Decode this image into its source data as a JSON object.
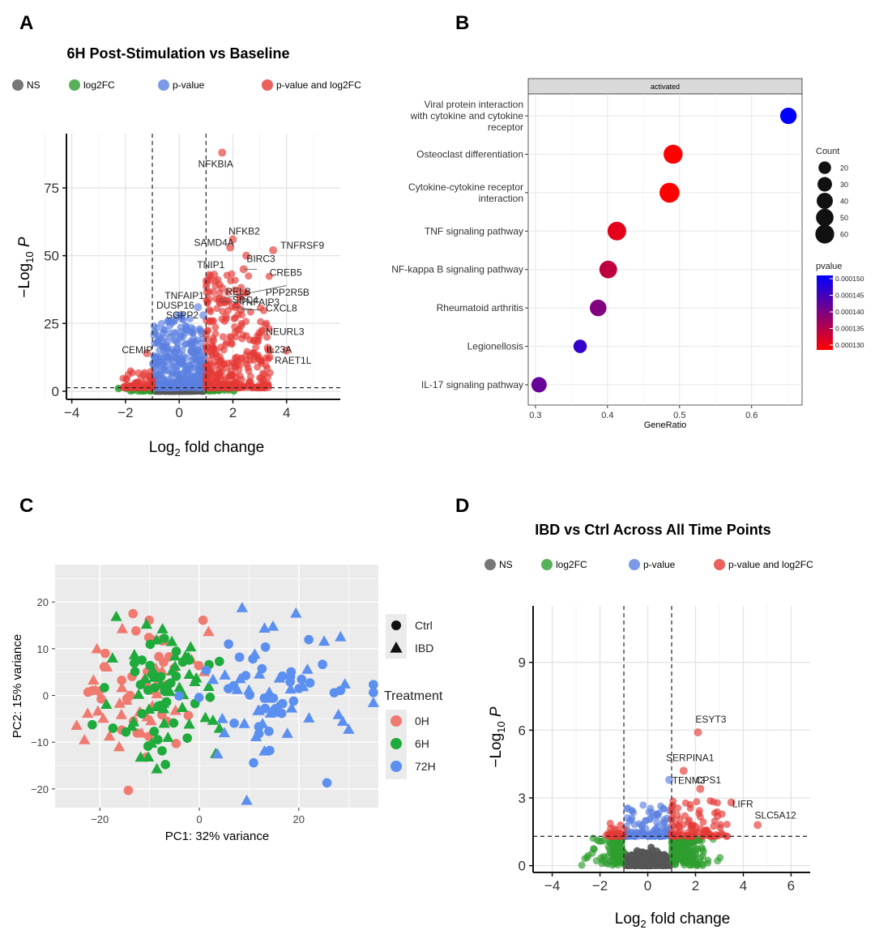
{
  "panel_labels": [
    "A",
    "B",
    "C",
    "D"
  ],
  "colors": {
    "NS": "#555555",
    "log2FC": "#2e9e2e",
    "p-value": "#5a7fe0",
    "p-value and log2FC": "#e53935",
    "panel_bg": "#ebebeb",
    "strip_bg": "#d9d9d9",
    "pvalue_low": "#ff0000",
    "pvalue_high": "#0000ff",
    "pca_0H": "#f07a70",
    "pca_6H": "#1faa3c",
    "pca_72H": "#5b8ff0"
  },
  "chart_data": [
    {
      "panel": "A",
      "type": "scatter",
      "subtype": "volcano",
      "title": "6H Post-Stimulation vs Baseline",
      "xlabel": "Log2 fold change",
      "ylabel": "-Log10 P",
      "xlim": [
        -4.2,
        6
      ],
      "ylim": [
        -3,
        95
      ],
      "xticks": [
        -4,
        -2,
        0,
        2,
        4
      ],
      "yticks": [
        0,
        25,
        50,
        75
      ],
      "fc_cutoff": 1,
      "p_cutoff_y": 1.3,
      "legend": [
        "NS",
        "log2FC",
        "p-value",
        "p-value and log2FC"
      ],
      "labeled_genes": [
        {
          "name": "NFKBIA",
          "x": 1.6,
          "y": 88,
          "cat": "p-value and log2FC"
        },
        {
          "name": "NFKB2",
          "x": 2.0,
          "y": 56,
          "cat": "p-value and log2FC"
        },
        {
          "name": "SAMD4A",
          "x": 1.9,
          "y": 53,
          "cat": "p-value and log2FC"
        },
        {
          "name": "TNFRSF9",
          "x": 3.5,
          "y": 52,
          "cat": "p-value and log2FC"
        },
        {
          "name": "BIRC3",
          "x": 2.5,
          "y": 50,
          "cat": "p-value and log2FC"
        },
        {
          "name": "TNIP1",
          "x": 1.3,
          "y": 43,
          "cat": "p-value and log2FC"
        },
        {
          "name": "CREB5",
          "x": 2.4,
          "y": 45,
          "cat": "p-value and log2FC"
        },
        {
          "name": "RELB",
          "x": 1.6,
          "y": 38,
          "cat": "p-value and log2FC"
        },
        {
          "name": "PPP2R5B",
          "x": 1.5,
          "y": 34,
          "cat": "p-value and log2FC"
        },
        {
          "name": "TNFAIP1",
          "x": 1.1,
          "y": 34,
          "cat": "p-value and log2FC"
        },
        {
          "name": "SDC4",
          "x": 1.5,
          "y": 33,
          "cat": "p-value and log2FC"
        },
        {
          "name": "DUSP16",
          "x": 0.7,
          "y": 31,
          "cat": "p-value"
        },
        {
          "name": "TNFAIP3",
          "x": 2.1,
          "y": 31,
          "cat": "p-value and log2FC"
        },
        {
          "name": "CXCL8",
          "x": 2.3,
          "y": 30,
          "cat": "p-value and log2FC"
        },
        {
          "name": "SGPP2",
          "x": 0.9,
          "y": 28,
          "cat": "p-value"
        },
        {
          "name": "NEURL3",
          "x": 3.1,
          "y": 22,
          "cat": "p-value and log2FC"
        },
        {
          "name": "IL23A",
          "x": 3.3,
          "y": 16,
          "cat": "p-value and log2FC"
        },
        {
          "name": "RAET1L",
          "x": 4.0,
          "y": 15,
          "cat": "p-value and log2FC"
        },
        {
          "name": "CEMIP",
          "x": -1.2,
          "y": 14,
          "cat": "p-value and log2FC"
        }
      ]
    },
    {
      "panel": "B",
      "type": "scatter",
      "subtype": "dotplot",
      "facet": "activated",
      "xlabel": "GeneRatio",
      "xlim": [
        0.29,
        0.67
      ],
      "xticks": [
        0.3,
        0.4,
        0.5,
        0.6
      ],
      "size_legend_title": "Count",
      "size_legend": [
        20,
        30,
        40,
        50,
        60
      ],
      "color_legend_title": "pvalue",
      "color_legend": [
        "0.000150",
        "0.000145",
        "0.000140",
        "0.000135",
        "0.000130"
      ],
      "terms": [
        {
          "label": [
            "Viral protein interaction",
            "with cytokine and cytokine",
            "receptor"
          ],
          "ratio": 0.651,
          "count": 37,
          "pvalue": 0.00015
        },
        {
          "label": [
            "Osteoclast differentiation"
          ],
          "ratio": 0.491,
          "count": 55,
          "pvalue": 0.00013
        },
        {
          "label": [
            "Cytokine-cytokine receptor",
            "interaction"
          ],
          "ratio": 0.486,
          "count": 62,
          "pvalue": 0.00013
        },
        {
          "label": [
            "TNF signaling pathway"
          ],
          "ratio": 0.413,
          "count": 52,
          "pvalue": 0.000132
        },
        {
          "label": [
            "NF-kappa B signaling pathway"
          ],
          "ratio": 0.401,
          "count": 45,
          "pvalue": 0.000135
        },
        {
          "label": [
            "Rheumatoid arthritis"
          ],
          "ratio": 0.387,
          "count": 38,
          "pvalue": 0.00014
        },
        {
          "label": [
            "Legionellosis"
          ],
          "ratio": 0.362,
          "count": 20,
          "pvalue": 0.000146
        },
        {
          "label": [
            "IL-17 signaling pathway"
          ],
          "ratio": 0.305,
          "count": 30,
          "pvalue": 0.000142
        }
      ]
    },
    {
      "panel": "C",
      "type": "scatter",
      "subtype": "pca",
      "xlabel": "PC1: 32% variance",
      "ylabel": "PC2: 15% variance",
      "xlim": [
        -29,
        36
      ],
      "ylim": [
        -24,
        28
      ],
      "xticks": [
        -20,
        0,
        20
      ],
      "yticks": [
        -20,
        -10,
        0,
        10,
        20
      ],
      "shape_legend": [
        "Ctrl",
        "IBD"
      ],
      "color_legend_title": "Treatment",
      "color_legend": [
        "0H",
        "6H",
        "72H"
      ],
      "groups": [
        {
          "treatment": "0H",
          "n": 70,
          "cx": -11,
          "cy": 1,
          "sx": 6.5,
          "sy": 7.5
        },
        {
          "treatment": "6H",
          "n": 80,
          "cx": -7,
          "cy": 0,
          "sx": 5.5,
          "sy": 7.5
        },
        {
          "treatment": "72H",
          "n": 80,
          "cx": 15,
          "cy": 0,
          "sx": 8,
          "sy": 7.5
        }
      ]
    },
    {
      "panel": "D",
      "type": "scatter",
      "subtype": "volcano",
      "title": "IBD vs Ctrl Across All Time Points",
      "xlabel": "Log2 fold change",
      "ylabel": "-Log10 P",
      "xlim": [
        -4.8,
        6.8
      ],
      "ylim": [
        -0.3,
        11.5
      ],
      "xticks": [
        -4,
        -2,
        0,
        2,
        4,
        6
      ],
      "yticks": [
        0,
        3,
        6,
        9
      ],
      "fc_cutoff": 1,
      "p_cutoff_y": 1.3,
      "legend": [
        "NS",
        "log2FC",
        "p-value",
        "p-value and log2FC"
      ],
      "labeled_genes": [
        {
          "name": "ESYT3",
          "x": 2.1,
          "y": 5.9,
          "cat": "p-value and log2FC"
        },
        {
          "name": "SERPINA1",
          "x": 1.5,
          "y": 4.2,
          "cat": "p-value and log2FC"
        },
        {
          "name": "TENM3",
          "x": 0.9,
          "y": 3.8,
          "cat": "p-value"
        },
        {
          "name": "CPS1",
          "x": 2.2,
          "y": 3.4,
          "cat": "p-value and log2FC"
        },
        {
          "name": "LIFR",
          "x": 3.5,
          "y": 2.8,
          "cat": "p-value and log2FC"
        },
        {
          "name": "SLC5A12",
          "x": 4.6,
          "y": 1.8,
          "cat": "p-value and log2FC"
        }
      ]
    }
  ]
}
